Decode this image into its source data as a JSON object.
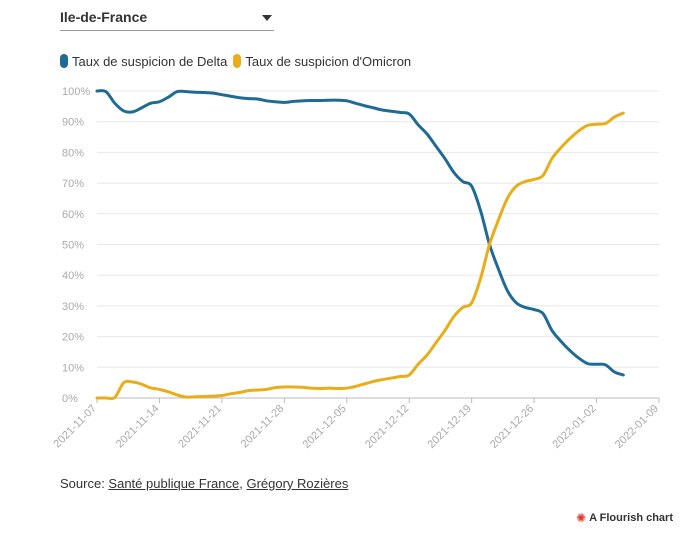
{
  "header": {
    "region_selected": "Ile-de-France",
    "dropdown_icon": "chevron-down-icon"
  },
  "legend": [
    {
      "label": "Taux de suspicion de Delta",
      "color": "#1f6b94"
    },
    {
      "label": "Taux de suspicion d'Omicron",
      "color": "#e8ad19"
    }
  ],
  "footer": {
    "source_prefix": "Source: ",
    "source_link_1": "Santé publique France",
    "source_separator": ", ",
    "source_link_2": "Grégory Rozières",
    "flourish_label": "A Flourish chart",
    "flourish_icon": "flourish-logo-icon"
  },
  "chart_data": {
    "type": "line",
    "title": "",
    "xlabel": "",
    "ylabel": "",
    "y_unit": "%",
    "ylim": [
      0,
      100
    ],
    "y_ticks": [
      0,
      10,
      20,
      30,
      40,
      50,
      60,
      70,
      80,
      90,
      100
    ],
    "x_ticks": [
      "2021-11-07",
      "2021-11-14",
      "2021-11-21",
      "2021-11-28",
      "2021-12-05",
      "2021-12-12",
      "2021-12-19",
      "2021-12-26",
      "2022-01-02",
      "2022-01-09"
    ],
    "x_range": [
      "2021-11-07",
      "2022-01-09"
    ],
    "grid": "horizontal",
    "legend_position": "top-left",
    "series": [
      {
        "name": "Taux de suspicion de Delta",
        "color": "#1f6b94",
        "points": [
          [
            "2021-11-07",
            100
          ],
          [
            "2021-11-08",
            99.8
          ],
          [
            "2021-11-09",
            96
          ],
          [
            "2021-11-10",
            93.5
          ],
          [
            "2021-11-11",
            93.2
          ],
          [
            "2021-11-12",
            94.5
          ],
          [
            "2021-11-13",
            96
          ],
          [
            "2021-11-14",
            96.5
          ],
          [
            "2021-11-15",
            98
          ],
          [
            "2021-11-16",
            99.8
          ],
          [
            "2021-11-17",
            99.8
          ],
          [
            "2021-11-18",
            99.6
          ],
          [
            "2021-11-19",
            99.5
          ],
          [
            "2021-11-20",
            99.3
          ],
          [
            "2021-11-21",
            98.8
          ],
          [
            "2021-11-22",
            98.3
          ],
          [
            "2021-11-23",
            97.8
          ],
          [
            "2021-11-24",
            97.5
          ],
          [
            "2021-11-25",
            97.4
          ],
          [
            "2021-11-26",
            96.8
          ],
          [
            "2021-11-27",
            96.5
          ],
          [
            "2021-11-28",
            96.3
          ],
          [
            "2021-11-29",
            96.6
          ],
          [
            "2021-11-30",
            96.8
          ],
          [
            "2021-12-01",
            96.9
          ],
          [
            "2021-12-02",
            96.9
          ],
          [
            "2021-12-03",
            97.0
          ],
          [
            "2021-12-04",
            97.0
          ],
          [
            "2021-12-05",
            96.8
          ],
          [
            "2021-12-06",
            96.0
          ],
          [
            "2021-12-07",
            95.2
          ],
          [
            "2021-12-08",
            94.5
          ],
          [
            "2021-12-09",
            93.8
          ],
          [
            "2021-12-10",
            93.4
          ],
          [
            "2021-12-11",
            93.0
          ],
          [
            "2021-12-12",
            92.5
          ],
          [
            "2021-12-13",
            89.0
          ],
          [
            "2021-12-14",
            86.0
          ],
          [
            "2021-12-15",
            82.0
          ],
          [
            "2021-12-16",
            78.0
          ],
          [
            "2021-12-17",
            73.5
          ],
          [
            "2021-12-18",
            70.5
          ],
          [
            "2021-12-19",
            69.0
          ],
          [
            "2021-12-20",
            61.0
          ],
          [
            "2021-12-21",
            50.0
          ],
          [
            "2021-12-22",
            42.0
          ],
          [
            "2021-12-23",
            35.0
          ],
          [
            "2021-12-24",
            31.0
          ],
          [
            "2021-12-25",
            29.5
          ],
          [
            "2021-12-26",
            28.8
          ],
          [
            "2021-12-27",
            27.5
          ],
          [
            "2021-12-28",
            22.0
          ],
          [
            "2021-12-29",
            18.5
          ],
          [
            "2021-12-30",
            15.5
          ],
          [
            "2021-12-31",
            13.0
          ],
          [
            "2022-01-01",
            11.2
          ],
          [
            "2022-01-02",
            11.0
          ],
          [
            "2022-01-03",
            10.8
          ],
          [
            "2022-01-04",
            8.5
          ],
          [
            "2022-01-05",
            7.5
          ]
        ]
      },
      {
        "name": "Taux de suspicion d'Omicron",
        "color": "#e8ad19",
        "points": [
          [
            "2021-11-07",
            0
          ],
          [
            "2021-11-08",
            0
          ],
          [
            "2021-11-09",
            0.2
          ],
          [
            "2021-11-10",
            5.0
          ],
          [
            "2021-11-11",
            5.2
          ],
          [
            "2021-11-12",
            4.5
          ],
          [
            "2021-11-13",
            3.3
          ],
          [
            "2021-11-14",
            2.8
          ],
          [
            "2021-11-15",
            2.0
          ],
          [
            "2021-11-16",
            1.0
          ],
          [
            "2021-11-17",
            0.3
          ],
          [
            "2021-11-18",
            0.4
          ],
          [
            "2021-11-19",
            0.5
          ],
          [
            "2021-11-20",
            0.6
          ],
          [
            "2021-11-21",
            0.8
          ],
          [
            "2021-11-22",
            1.4
          ],
          [
            "2021-11-23",
            1.8
          ],
          [
            "2021-11-24",
            2.4
          ],
          [
            "2021-11-25",
            2.6
          ],
          [
            "2021-11-26",
            2.8
          ],
          [
            "2021-11-27",
            3.4
          ],
          [
            "2021-11-28",
            3.6
          ],
          [
            "2021-11-29",
            3.6
          ],
          [
            "2021-11-30",
            3.5
          ],
          [
            "2021-12-01",
            3.2
          ],
          [
            "2021-12-02",
            3.1
          ],
          [
            "2021-12-03",
            3.2
          ],
          [
            "2021-12-04",
            3.1
          ],
          [
            "2021-12-05",
            3.2
          ],
          [
            "2021-12-06",
            3.8
          ],
          [
            "2021-12-07",
            4.6
          ],
          [
            "2021-12-08",
            5.4
          ],
          [
            "2021-12-09",
            6.0
          ],
          [
            "2021-12-10",
            6.5
          ],
          [
            "2021-12-11",
            7.0
          ],
          [
            "2021-12-12",
            7.5
          ],
          [
            "2021-12-13",
            11.0
          ],
          [
            "2021-12-14",
            14.0
          ],
          [
            "2021-12-15",
            18.0
          ],
          [
            "2021-12-16",
            22.0
          ],
          [
            "2021-12-17",
            26.5
          ],
          [
            "2021-12-18",
            29.5
          ],
          [
            "2021-12-19",
            31.0
          ],
          [
            "2021-12-20",
            39.0
          ],
          [
            "2021-12-21",
            50.0
          ],
          [
            "2021-12-22",
            58.0
          ],
          [
            "2021-12-23",
            65.0
          ],
          [
            "2021-12-24",
            69.0
          ],
          [
            "2021-12-25",
            70.5
          ],
          [
            "2021-12-26",
            71.2
          ],
          [
            "2021-12-27",
            72.5
          ],
          [
            "2021-12-28",
            78.0
          ],
          [
            "2021-12-29",
            81.5
          ],
          [
            "2021-12-30",
            84.5
          ],
          [
            "2021-12-31",
            87.0
          ],
          [
            "2022-01-01",
            88.8
          ],
          [
            "2022-01-02",
            89.2
          ],
          [
            "2022-01-03",
            89.4
          ],
          [
            "2022-01-04",
            91.5
          ],
          [
            "2022-01-05",
            92.8
          ]
        ]
      }
    ]
  }
}
